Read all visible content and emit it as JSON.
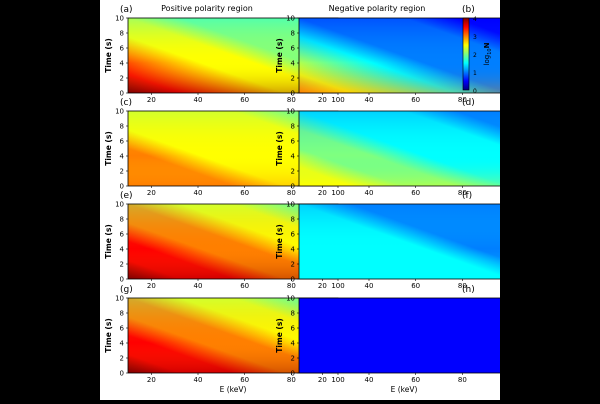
{
  "figure": {
    "column_titles": [
      "Positive polarity region",
      "Negative polarity region"
    ],
    "panel_letters": [
      "(a)",
      "(b)",
      "(c)",
      "(d)",
      "(e)",
      "(f)",
      "(g)",
      "(h)"
    ],
    "ylabel": "Time (s)",
    "xlabel": "E (keV)"
  },
  "colorbar": {
    "label": "log10 N",
    "label_main": "log",
    "label_sub": "10",
    "label_var": "N",
    "ticks": [
      "0",
      "1",
      "2",
      "3",
      "4"
    ],
    "range": [
      0,
      4
    ],
    "colormap": "jet",
    "colors": [
      "#00007f",
      "#0000ff",
      "#007fff",
      "#00ffff",
      "#7fff7f",
      "#ffff00",
      "#ff7f00",
      "#ff0000",
      "#7f0000"
    ]
  },
  "chart_data": [
    {
      "panel": "(a)",
      "type": "heatmap",
      "column": "Positive polarity region",
      "x": "E (keV)",
      "xlim": [
        10,
        100
      ],
      "ylim": [
        0,
        10
      ],
      "xticks": [
        "20",
        "40",
        "60",
        "80",
        "100"
      ],
      "yticks": [
        "0",
        "2",
        "4",
        "6",
        "8",
        "10"
      ],
      "description_values": {
        "low_time_low_E": 4.0,
        "high_time_high_E": 1.6,
        "mid": 2.3
      }
    },
    {
      "panel": "(b)",
      "type": "heatmap",
      "column": "Negative polarity region",
      "x": "E (keV)",
      "xlim": [
        10,
        100
      ],
      "ylim": [
        0,
        10
      ],
      "xticks": [
        "20",
        "40",
        "60",
        "80",
        "100"
      ],
      "yticks": [
        "0",
        "2",
        "4",
        "6",
        "8",
        "10"
      ],
      "description_values": {
        "low_time_low_E": 3.0,
        "high_time_high_E": 0.5,
        "mid": 1.2
      }
    },
    {
      "panel": "(c)",
      "type": "heatmap",
      "column": "Positive polarity region",
      "x": "E (keV)",
      "xlim": [
        10,
        100
      ],
      "ylim": [
        0,
        10
      ],
      "xticks": [
        "20",
        "40",
        "60",
        "80",
        "100"
      ],
      "yticks": [
        "0",
        "2",
        "4",
        "6",
        "8",
        "10"
      ],
      "description_values": {
        "low_time_low_E": 3.2,
        "high_time_high_E": 2.1,
        "mid": 2.5
      }
    },
    {
      "panel": "(d)",
      "type": "heatmap",
      "column": "Negative polarity region",
      "x": "E (keV)",
      "xlim": [
        10,
        100
      ],
      "ylim": [
        0,
        10
      ],
      "xticks": [
        "20",
        "40",
        "60",
        "80",
        "100"
      ],
      "yticks": [
        "0",
        "2",
        "4",
        "6",
        "8",
        "10"
      ],
      "description_values": {
        "low_time_low_E": 2.6,
        "high_time_high_E": 1.0,
        "mid": 1.6
      }
    },
    {
      "panel": "(e)",
      "type": "heatmap",
      "column": "Positive polarity region",
      "x": "E (keV)",
      "xlim": [
        10,
        100
      ],
      "ylim": [
        0,
        10
      ],
      "xticks": [
        "20",
        "40",
        "60",
        "80",
        "100"
      ],
      "yticks": [
        "0",
        "2",
        "4",
        "6",
        "8",
        "10"
      ],
      "description_values": {
        "low_time_low_E": 4.0,
        "high_time_high_E": 1.9,
        "mid": 2.8
      }
    },
    {
      "panel": "(f)",
      "type": "heatmap",
      "column": "Negative polarity region",
      "x": "E (keV)",
      "xlim": [
        10,
        100
      ],
      "ylim": [
        0,
        10
      ],
      "xticks": [
        "20",
        "40",
        "60",
        "80",
        "100"
      ],
      "yticks": [
        "0",
        "2",
        "4",
        "6",
        "8",
        "10"
      ],
      "description_values": {
        "low_time_low_E": 1.6,
        "high_time_high_E": 0.8,
        "mid": 1.3
      }
    },
    {
      "panel": "(g)",
      "type": "heatmap",
      "column": "Positive polarity region",
      "x": "E (keV)",
      "xlim": [
        10,
        100
      ],
      "ylim": [
        0,
        10
      ],
      "xticks": [
        "20",
        "40",
        "60",
        "80",
        "100"
      ],
      "yticks": [
        "0",
        "2",
        "4",
        "6",
        "8",
        "10"
      ],
      "description_values": {
        "low_time_low_E": 4.0,
        "high_time_high_E": 2.0,
        "mid": 2.9
      }
    },
    {
      "panel": "(h)",
      "type": "heatmap",
      "column": "Negative polarity region",
      "x": "E (keV)",
      "xlim": [
        10,
        100
      ],
      "ylim": [
        0,
        10
      ],
      "xticks": [
        "20",
        "40",
        "60",
        "80",
        "100"
      ],
      "yticks": [
        "0",
        "2",
        "4",
        "6",
        "8",
        "10"
      ],
      "description_values": {
        "low_time_low_E": 0.6,
        "high_time_high_E": 0.3,
        "mid": 0.5
      }
    }
  ]
}
